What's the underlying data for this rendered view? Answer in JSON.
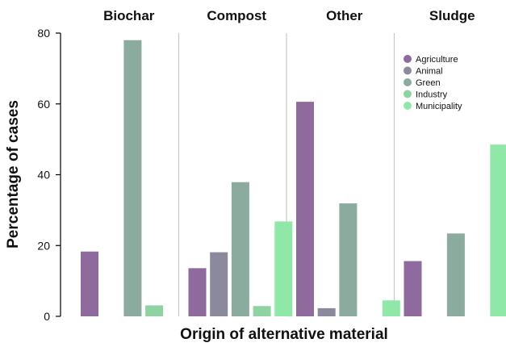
{
  "chart_data": {
    "type": "bar",
    "xlabel": "Origin of alternative material",
    "ylabel": "Percentage of cases",
    "ylim": [
      0,
      80
    ],
    "yticks": [
      0,
      20,
      40,
      60,
      80
    ],
    "facets": [
      "Biochar",
      "Compost",
      "Other",
      "Sludge"
    ],
    "series": [
      {
        "name": "Agriculture",
        "color": "#8e6b9c",
        "values": [
          18.3,
          13.6,
          60.6,
          15.6
        ]
      },
      {
        "name": "Animal",
        "color": "#8a8a9c",
        "values": [
          0,
          18.1,
          2.3,
          0
        ]
      },
      {
        "name": "Green",
        "color": "#8aab9e",
        "values": [
          78,
          37.9,
          31.9,
          23.4
        ]
      },
      {
        "name": "Industry",
        "color": "#8fd3a3",
        "values": [
          3.1,
          2.9,
          0,
          0
        ]
      },
      {
        "name": "Municipality",
        "color": "#8fe8a7",
        "values": [
          0,
          26.8,
          4.5,
          48.5
        ]
      }
    ],
    "legend_position": "top-right",
    "grid": false
  }
}
